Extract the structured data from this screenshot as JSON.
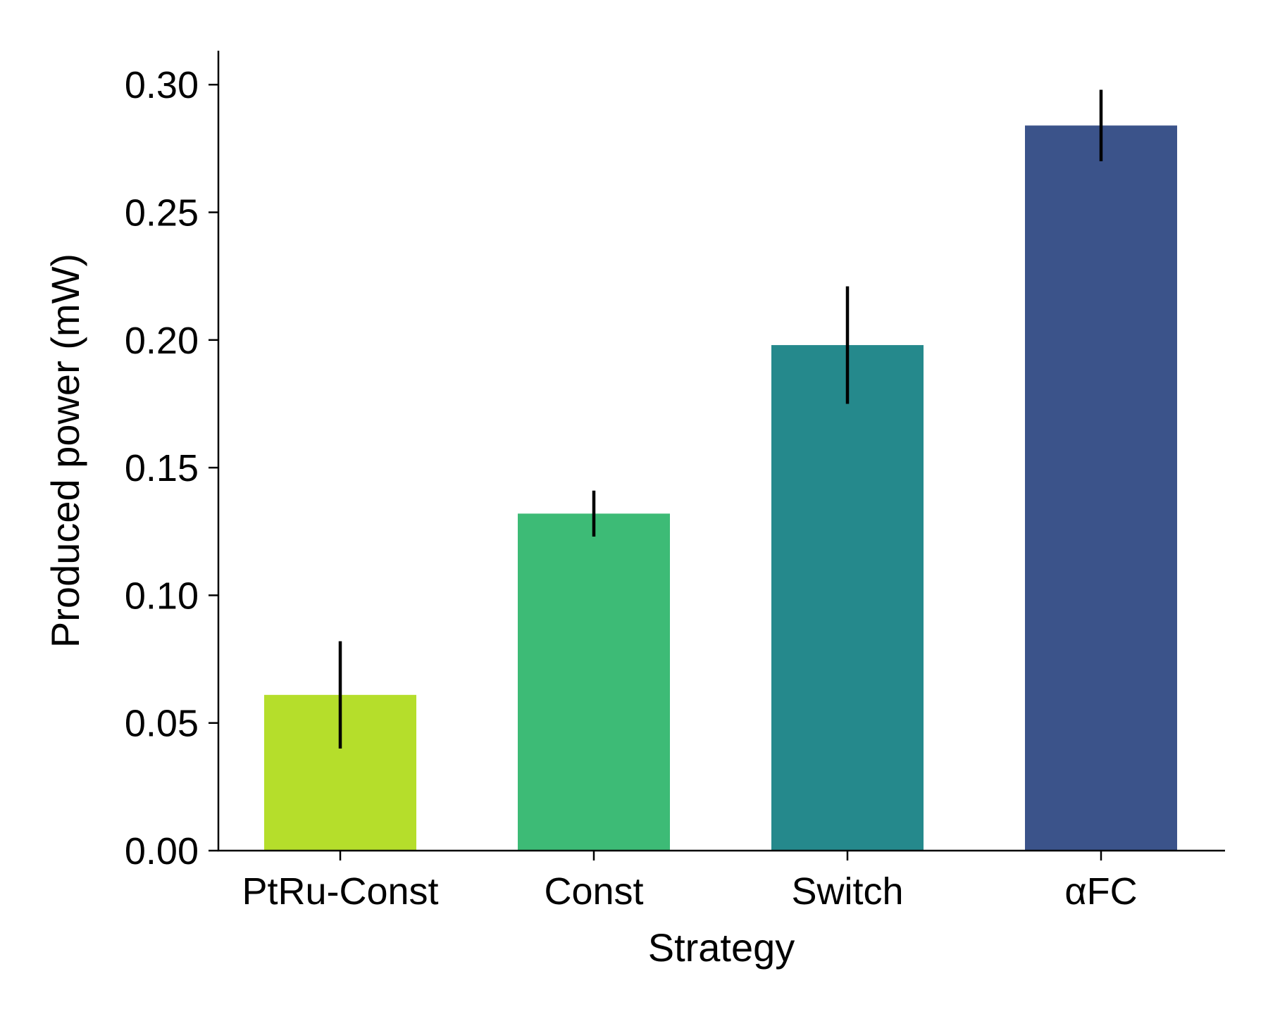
{
  "chart_data": {
    "type": "bar",
    "title": "",
    "xlabel": "Strategy",
    "ylabel": "Produced power (mW)",
    "categories": [
      "PtRu-Const",
      "Const",
      "Switch",
      "αFC"
    ],
    "values": [
      0.061,
      0.132,
      0.198,
      0.284
    ],
    "error_low": [
      0.04,
      0.123,
      0.175,
      0.27
    ],
    "error_high": [
      0.082,
      0.141,
      0.221,
      0.298
    ],
    "colors": [
      "#b5de2b",
      "#3dbb76",
      "#25898c",
      "#3b538a"
    ],
    "error_color": "#000000",
    "ylim": [
      0,
      0.3133
    ],
    "yticks": [
      0.0,
      0.05,
      0.1,
      0.15,
      0.2,
      0.25,
      0.3
    ],
    "ytick_labels": [
      "0.00",
      "0.05",
      "0.10",
      "0.15",
      "0.20",
      "0.25",
      "0.30"
    ],
    "grid": false,
    "legend": "none"
  }
}
